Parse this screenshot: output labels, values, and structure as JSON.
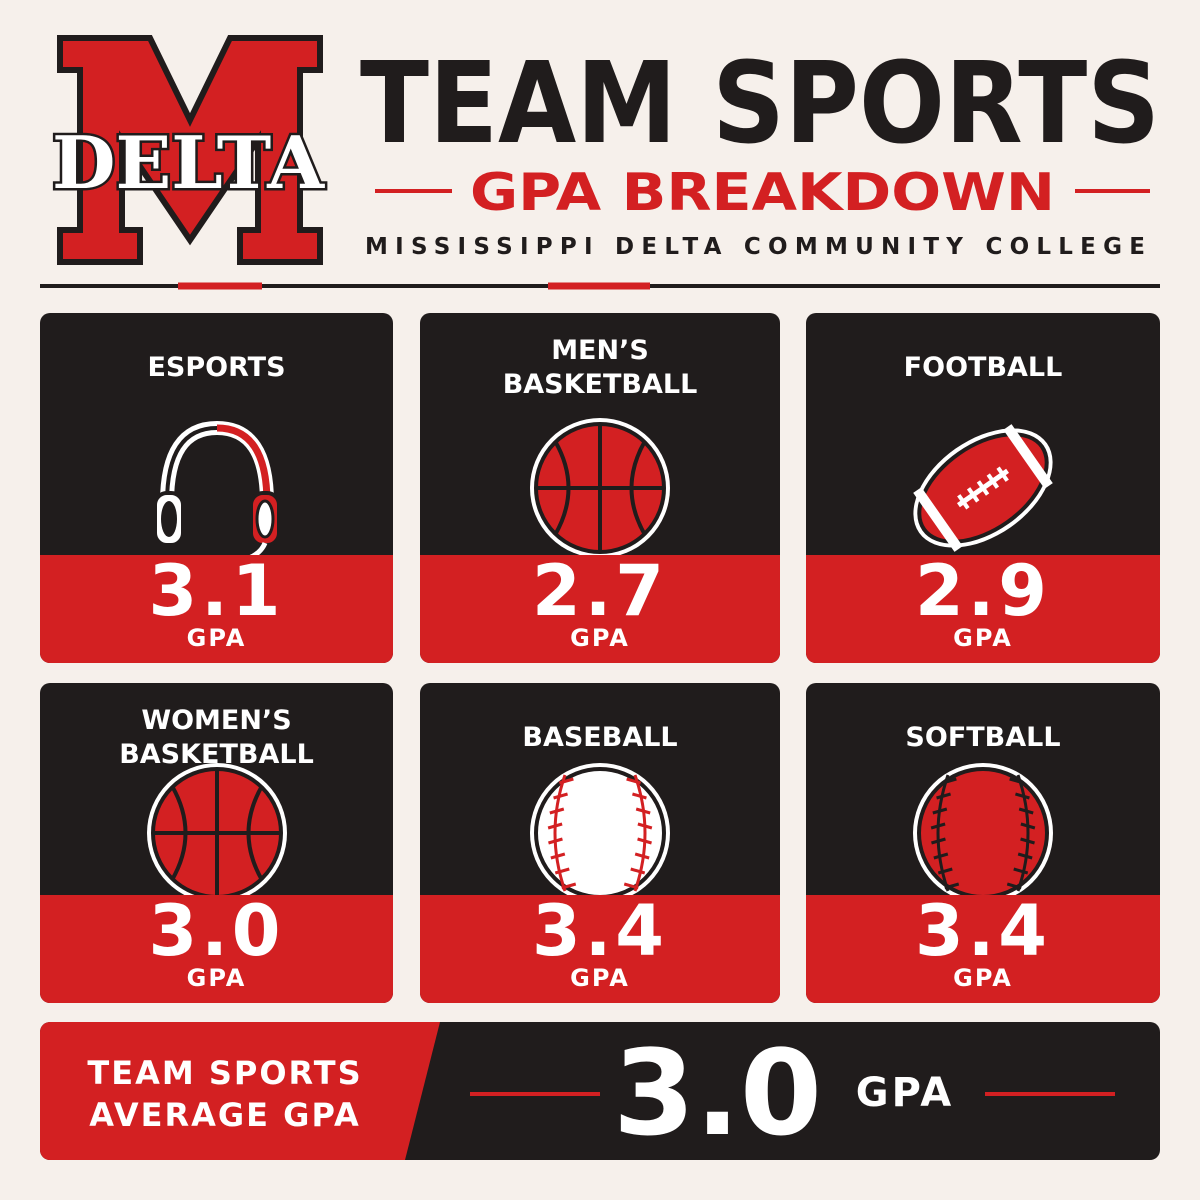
{
  "logo": {
    "text": "DELTA"
  },
  "header": {
    "title": "TEAM SPORTS",
    "subtitle": "GPA BREAKDOWN",
    "college": "MISSISSIPPI DELTA COMMUNITY COLLEGE"
  },
  "cards": [
    {
      "name": "ESPORTS",
      "value": "3.1",
      "unit": "GPA"
    },
    {
      "name": "MEN’S BASKETBALL",
      "value": "2.7",
      "unit": "GPA"
    },
    {
      "name": "FOOTBALL",
      "value": "2.9",
      "unit": "GPA"
    },
    {
      "name": "WOMEN’S BASKETBALL",
      "value": "3.0",
      "unit": "GPA"
    },
    {
      "name": "BASEBALL",
      "value": "3.4",
      "unit": "GPA"
    },
    {
      "name": "SOFTBALL",
      "value": "3.4",
      "unit": "GPA"
    }
  ],
  "summary": {
    "label": "TEAM SPORTS AVERAGE GPA",
    "value": "3.0",
    "unit": "GPA"
  }
}
